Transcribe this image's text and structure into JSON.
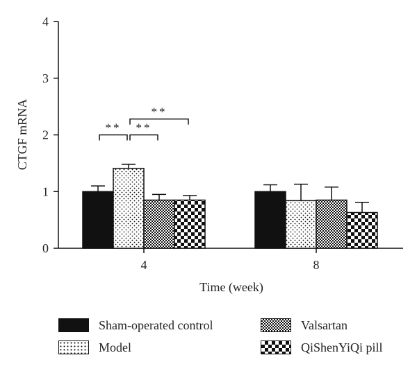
{
  "chart_data": {
    "type": "bar",
    "xlabel": "Time (week)",
    "ylabel": "CTGF mRNA",
    "ylim": [
      0,
      4
    ],
    "yticks": [
      0,
      1,
      2,
      3,
      4
    ],
    "categories": [
      "4",
      "8"
    ],
    "series": [
      {
        "name": "Sham-operated control",
        "pattern": "solid",
        "values": [
          1.0,
          1.0
        ],
        "errors": [
          0.1,
          0.12
        ]
      },
      {
        "name": "Model",
        "pattern": "dots",
        "values": [
          1.41,
          0.84
        ],
        "errors": [
          0.07,
          0.29
        ]
      },
      {
        "name": "Valsartan",
        "pattern": "fine-checker",
        "values": [
          0.85,
          0.85
        ],
        "errors": [
          0.1,
          0.23
        ]
      },
      {
        "name": "QiShenYiQi pill",
        "pattern": "coarse-checker",
        "values": [
          0.85,
          0.63
        ],
        "errors": [
          0.08,
          0.18
        ]
      }
    ],
    "annotations": [
      {
        "text": "**",
        "category": "4",
        "from_series": 0,
        "to_series": 1,
        "level": 2.0
      },
      {
        "text": "**",
        "category": "4",
        "from_series": 1,
        "to_series": 2,
        "level": 2.0
      },
      {
        "text": "**",
        "category": "4",
        "from_series": 1,
        "to_series": 3,
        "level": 2.28
      }
    ],
    "legend_position": "bottom",
    "colors": {
      "ink": "#111111",
      "background": "#ffffff"
    }
  }
}
